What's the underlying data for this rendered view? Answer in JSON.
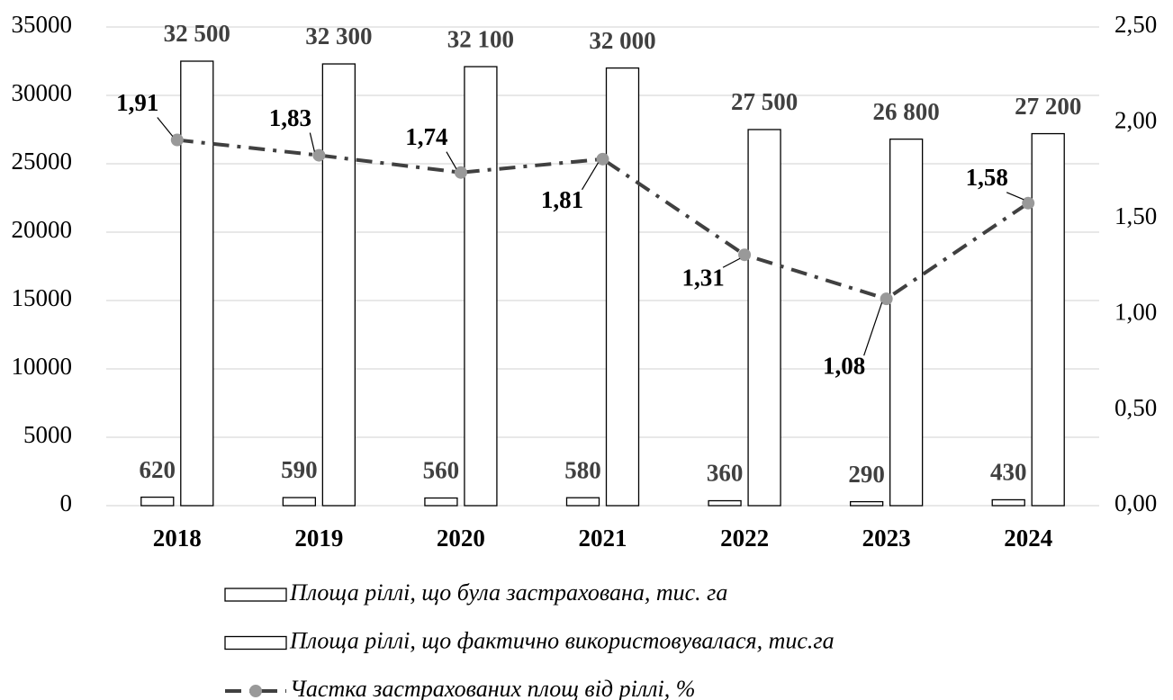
{
  "chart_data": {
    "type": "bar-line",
    "categories": [
      "2018",
      "2019",
      "2020",
      "2021",
      "2022",
      "2023",
      "2024"
    ],
    "series": [
      {
        "name": "Площа ріллі, що була застрахована, тис. га",
        "type": "bar",
        "color": "#ffffff",
        "values": [
          620,
          590,
          560,
          580,
          360,
          290,
          430
        ],
        "value_labels": [
          "620",
          "590",
          "560",
          "580",
          "360",
          "290",
          "430"
        ]
      },
      {
        "name": "Площа ріллі, що фактично використовувалася, тис.га",
        "type": "bar",
        "color": "#ffffff",
        "values": [
          32500,
          32300,
          32100,
          32000,
          27500,
          26800,
          27200
        ],
        "value_labels": [
          "32 500",
          "32 300",
          "32 100",
          "32 000",
          "27 500",
          "26 800",
          "27 200"
        ]
      },
      {
        "name": "Частка застрахованих площ від ріллі, %",
        "type": "line",
        "axis": "y2",
        "color": "#404040",
        "marker_color": "#999999",
        "values": [
          1.91,
          1.83,
          1.74,
          1.81,
          1.31,
          1.08,
          1.58
        ],
        "value_labels": [
          "1,91",
          "1,83",
          "1,74",
          "1,81",
          "1,31",
          "1,08",
          "1,58"
        ]
      }
    ],
    "ylim": [
      0,
      35000
    ],
    "yticks": [
      0,
      5000,
      10000,
      15000,
      20000,
      25000,
      30000,
      35000
    ],
    "y2lim": [
      0,
      2.5
    ],
    "y2ticks": [
      {
        "value": 0,
        "label": "0,00"
      },
      {
        "value": 0.5,
        "label": "0,50"
      },
      {
        "value": 1,
        "label": "1,00"
      },
      {
        "value": 1.5,
        "label": "1,50"
      },
      {
        "value": 2,
        "label": "2,00"
      },
      {
        "value": 2.5,
        "label": "2,50"
      }
    ],
    "grid": true,
    "legend": "bottom"
  }
}
